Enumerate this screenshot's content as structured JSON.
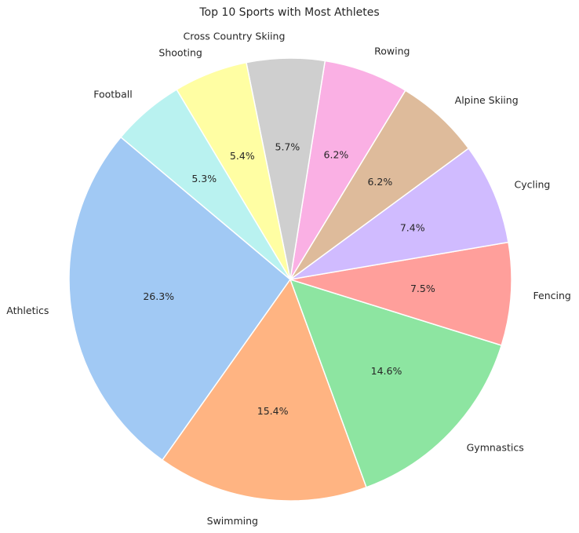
{
  "chart_data": {
    "type": "pie",
    "title": "Top 10 Sports with Most Athletes",
    "start_angle_deg": 140,
    "direction": "counterclockwise",
    "categories": [
      "Athletics",
      "Swimming",
      "Gymnastics",
      "Fencing",
      "Cycling",
      "Alpine Skiing",
      "Rowing",
      "Cross Country Skiing",
      "Shooting",
      "Football"
    ],
    "values": [
      26.3,
      15.4,
      14.6,
      7.5,
      7.4,
      6.2,
      6.2,
      5.7,
      5.4,
      5.3
    ],
    "percent_labels": [
      "26.3%",
      "15.4%",
      "14.6%",
      "7.5%",
      "7.4%",
      "6.2%",
      "6.2%",
      "5.7%",
      "5.4%",
      "5.3%"
    ],
    "colors": [
      "#a1c9f4",
      "#ffb482",
      "#8de5a1",
      "#ff9f9b",
      "#d0bbff",
      "#debb9b",
      "#fab0e4",
      "#cfcfcf",
      "#fffea3",
      "#b9f2f0"
    ],
    "legend": "none",
    "grid": false
  }
}
